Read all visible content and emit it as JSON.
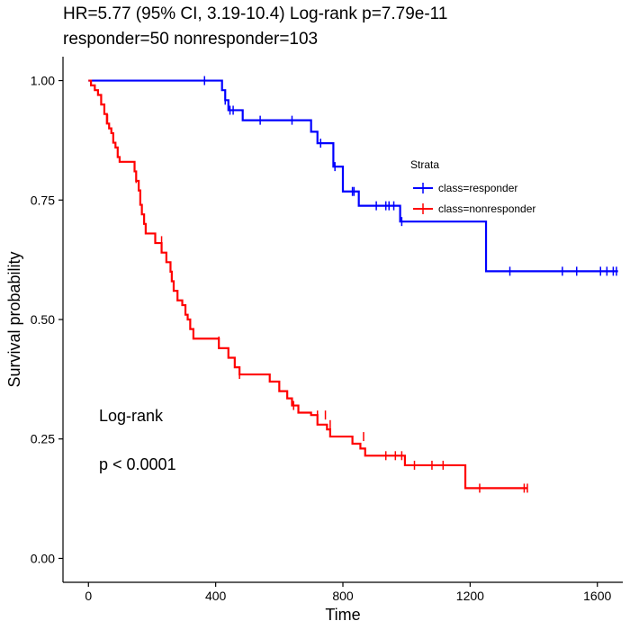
{
  "header": {
    "title_line1": "HR=5.77 (95% CI, 3.19-10.4) Log-rank p=7.79e-11",
    "title_line2": "responder=50 nonresponder=103"
  },
  "chart_data": {
    "type": "line",
    "subtype": "kaplan-meier",
    "xlabel": "Time",
    "ylabel": "Survival probability",
    "xlim": [
      -80,
      1680
    ],
    "ylim": [
      -0.05,
      1.05
    ],
    "x_ticks": [
      0,
      400,
      800,
      1200,
      1600
    ],
    "y_ticks": [
      0.0,
      0.25,
      0.5,
      0.75,
      1.0
    ],
    "y_tick_labels": [
      "0.00",
      "0.25",
      "0.50",
      "0.75",
      "1.00"
    ],
    "grid": false,
    "legend": {
      "title": "Strata",
      "placement": "right",
      "entries": [
        "class=responder",
        "class=nonresponder"
      ]
    },
    "annotations": [
      "Log-rank",
      "p < 0.0001"
    ],
    "series": [
      {
        "name": "class=responder",
        "color": "#0000FF",
        "steps": [
          [
            0,
            1.0
          ],
          [
            420,
            0.98
          ],
          [
            430,
            0.959
          ],
          [
            440,
            0.938
          ],
          [
            485,
            0.917
          ],
          [
            700,
            0.893
          ],
          [
            720,
            0.869
          ],
          [
            770,
            0.82
          ],
          [
            800,
            0.768
          ],
          [
            850,
            0.738
          ],
          [
            980,
            0.705
          ],
          [
            1250,
            0.601
          ]
        ],
        "end_x": 1665,
        "censored": [
          [
            365,
            1.0
          ],
          [
            430,
            0.959
          ],
          [
            445,
            0.938
          ],
          [
            455,
            0.938
          ],
          [
            540,
            0.917
          ],
          [
            640,
            0.917
          ],
          [
            730,
            0.869
          ],
          [
            775,
            0.82
          ],
          [
            830,
            0.768
          ],
          [
            835,
            0.768
          ],
          [
            905,
            0.738
          ],
          [
            935,
            0.738
          ],
          [
            945,
            0.738
          ],
          [
            960,
            0.738
          ],
          [
            985,
            0.705
          ],
          [
            1325,
            0.601
          ],
          [
            1490,
            0.601
          ],
          [
            1535,
            0.601
          ],
          [
            1610,
            0.601
          ],
          [
            1630,
            0.601
          ],
          [
            1650,
            0.601
          ],
          [
            1660,
            0.601
          ]
        ]
      },
      {
        "name": "class=nonresponder",
        "color": "#FF0000",
        "steps": [
          [
            0,
            1.0
          ],
          [
            8,
            0.99
          ],
          [
            20,
            0.98
          ],
          [
            30,
            0.97
          ],
          [
            40,
            0.95
          ],
          [
            50,
            0.93
          ],
          [
            58,
            0.91
          ],
          [
            65,
            0.9
          ],
          [
            72,
            0.89
          ],
          [
            78,
            0.87
          ],
          [
            85,
            0.86
          ],
          [
            92,
            0.84
          ],
          [
            98,
            0.83
          ],
          [
            145,
            0.81
          ],
          [
            150,
            0.79
          ],
          [
            158,
            0.77
          ],
          [
            163,
            0.74
          ],
          [
            168,
            0.72
          ],
          [
            175,
            0.7
          ],
          [
            180,
            0.68
          ],
          [
            210,
            0.66
          ],
          [
            230,
            0.64
          ],
          [
            245,
            0.62
          ],
          [
            258,
            0.6
          ],
          [
            262,
            0.58
          ],
          [
            268,
            0.56
          ],
          [
            280,
            0.54
          ],
          [
            295,
            0.53
          ],
          [
            305,
            0.51
          ],
          [
            312,
            0.5
          ],
          [
            320,
            0.48
          ],
          [
            330,
            0.46
          ],
          [
            410,
            0.44
          ],
          [
            440,
            0.42
          ],
          [
            460,
            0.4
          ],
          [
            475,
            0.385
          ],
          [
            570,
            0.37
          ],
          [
            600,
            0.35
          ],
          [
            625,
            0.335
          ],
          [
            640,
            0.32
          ],
          [
            660,
            0.305
          ],
          [
            700,
            0.3
          ],
          [
            720,
            0.28
          ],
          [
            750,
            0.27
          ],
          [
            760,
            0.255
          ],
          [
            830,
            0.24
          ],
          [
            855,
            0.23
          ],
          [
            870,
            0.215
          ],
          [
            995,
            0.195
          ],
          [
            1185,
            0.147
          ]
        ],
        "end_x": 1380,
        "censored": [
          [
            60,
            0.92
          ],
          [
            150,
            0.795
          ],
          [
            230,
            0.665
          ],
          [
            410,
            0.455
          ],
          [
            475,
            0.385
          ],
          [
            645,
            0.32
          ],
          [
            720,
            0.3
          ],
          [
            745,
            0.3
          ],
          [
            760,
            0.28
          ],
          [
            865,
            0.255
          ],
          [
            935,
            0.215
          ],
          [
            965,
            0.215
          ],
          [
            985,
            0.215
          ],
          [
            1025,
            0.195
          ],
          [
            1080,
            0.195
          ],
          [
            1115,
            0.195
          ],
          [
            1230,
            0.147
          ],
          [
            1370,
            0.147
          ],
          [
            1380,
            0.147
          ]
        ]
      }
    ]
  }
}
